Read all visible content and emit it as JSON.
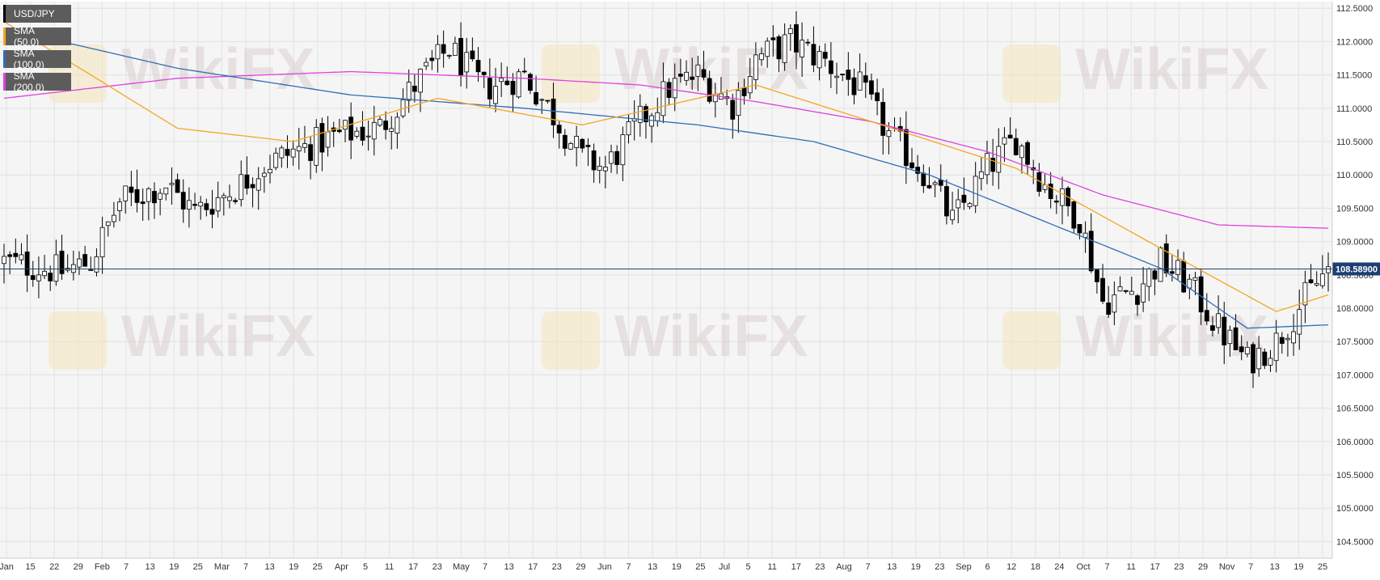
{
  "legend": [
    {
      "label": "USD/JPY",
      "color": "#000000"
    },
    {
      "label": "SMA (50,0)",
      "color": "#f5a623"
    },
    {
      "label": "SMA (100,0)",
      "color": "#2f6db5"
    },
    {
      "label": "SMA (200,0)",
      "color": "#e040e0"
    }
  ],
  "watermark_text": "WikiFX",
  "last_price_label": "108.58900",
  "colors": {
    "background": "#f5f5f5",
    "grid": "#e2e2e2",
    "up_candle": "#ffffff",
    "down_candle": "#000000",
    "sma50": "#f5a623",
    "sma100": "#2f6db5",
    "sma200": "#e040e0",
    "price_line": "#1c3f73"
  },
  "chart_data": {
    "type": "candlestick",
    "symbol": "USD/JPY",
    "y_ticks": [
      "104.5000",
      "105.0000",
      "105.5000",
      "106.0000",
      "106.5000",
      "107.0000",
      "107.5000",
      "108.0000",
      "108.5000",
      "109.0000",
      "109.5000",
      "110.0000",
      "110.5000",
      "111.0000",
      "111.5000",
      "112.0000",
      "112.5000"
    ],
    "ylim": [
      104.25,
      112.6
    ],
    "x_ticks": [
      "Jan",
      "15",
      "22",
      "29",
      "Feb",
      "7",
      "13",
      "19",
      "25",
      "Mar",
      "7",
      "13",
      "19",
      "25",
      "Apr",
      "5",
      "11",
      "17",
      "23",
      "May",
      "7",
      "13",
      "17",
      "23",
      "29",
      "Jun",
      "7",
      "13",
      "19",
      "25",
      "Jul",
      "5",
      "11",
      "17",
      "23",
      "Aug",
      "7",
      "13",
      "19",
      "23",
      "Sep",
      "6",
      "12",
      "18",
      "24",
      "Oct",
      "7",
      "11",
      "17",
      "23",
      "29",
      "Nov",
      "7",
      "13",
      "19",
      "25"
    ],
    "last_price": 108.589,
    "candle_count": 230,
    "close_anchors": [
      [
        0,
        108.7
      ],
      [
        10,
        108.55
      ],
      [
        15,
        108.7
      ],
      [
        20,
        109.6
      ],
      [
        28,
        109.85
      ],
      [
        33,
        109.45
      ],
      [
        40,
        109.8
      ],
      [
        45,
        110.15
      ],
      [
        50,
        110.35
      ],
      [
        58,
        110.6
      ],
      [
        65,
        110.7
      ],
      [
        72,
        111.45
      ],
      [
        77,
        111.9
      ],
      [
        83,
        111.3
      ],
      [
        90,
        111.5
      ],
      [
        95,
        110.9
      ],
      [
        100,
        110.25
      ],
      [
        104,
        110.1
      ],
      [
        110,
        110.8
      ],
      [
        115,
        111.3
      ],
      [
        120,
        111.5
      ],
      [
        126,
        111.05
      ],
      [
        130,
        111.75
      ],
      [
        136,
        112.0
      ],
      [
        142,
        111.7
      ],
      [
        148,
        111.3
      ],
      [
        153,
        110.6
      ],
      [
        160,
        109.95
      ],
      [
        164,
        109.3
      ],
      [
        170,
        110.1
      ],
      [
        175,
        110.55
      ],
      [
        180,
        109.85
      ],
      [
        186,
        109.35
      ],
      [
        190,
        108.1
      ],
      [
        196,
        108.3
      ],
      [
        200,
        108.7
      ],
      [
        205,
        108.35
      ],
      [
        210,
        107.7
      ],
      [
        215,
        107.2
      ],
      [
        220,
        107.5
      ],
      [
        225,
        108.15
      ],
      [
        229,
        108.589
      ]
    ],
    "sma50": [
      [
        0,
        112.3
      ],
      [
        30,
        110.7
      ],
      [
        50,
        110.5
      ],
      [
        75,
        111.15
      ],
      [
        100,
        110.75
      ],
      [
        130,
        111.35
      ],
      [
        150,
        110.8
      ],
      [
        175,
        110.1
      ],
      [
        200,
        108.9
      ],
      [
        220,
        107.95
      ],
      [
        229,
        108.2
      ]
    ],
    "sma100": [
      [
        0,
        112.2
      ],
      [
        30,
        111.6
      ],
      [
        60,
        111.2
      ],
      [
        90,
        111.0
      ],
      [
        120,
        110.75
      ],
      [
        140,
        110.5
      ],
      [
        160,
        110.0
      ],
      [
        180,
        109.3
      ],
      [
        200,
        108.6
      ],
      [
        215,
        107.7
      ],
      [
        229,
        107.75
      ]
    ],
    "sma200": [
      [
        0,
        111.15
      ],
      [
        30,
        111.45
      ],
      [
        60,
        111.55
      ],
      [
        90,
        111.45
      ],
      [
        110,
        111.35
      ],
      [
        130,
        111.1
      ],
      [
        150,
        110.8
      ],
      [
        170,
        110.35
      ],
      [
        190,
        109.7
      ],
      [
        210,
        109.25
      ],
      [
        229,
        109.2
      ]
    ]
  }
}
